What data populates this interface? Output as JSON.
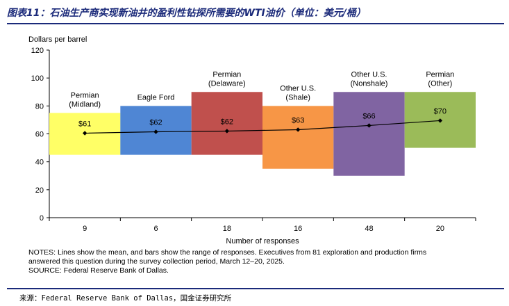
{
  "header": {
    "title": "图表11：石油生产商实现新油井的盈利性钻探所需要的WTI油价（单位：美元/桶）"
  },
  "chart_data": {
    "type": "bar",
    "subtype": "floating-range-with-mean-line",
    "ylabel": "Dollars per barrel",
    "xlabel": "Number of responses",
    "ylim": [
      0,
      120
    ],
    "yticks": [
      0,
      20,
      40,
      60,
      80,
      100,
      120
    ],
    "categories": [
      [
        "Permian",
        "(Midland)"
      ],
      [
        "Eagle Ford"
      ],
      [
        "Permian",
        "(Delaware)"
      ],
      [
        "Other U.S.",
        "(Shale)"
      ],
      [
        "Other U.S.",
        "(Nonshale)"
      ],
      [
        "Permian",
        "(Other)"
      ]
    ],
    "responses": [
      "9",
      "6",
      "18",
      "16",
      "48",
      "20"
    ],
    "range_low": [
      45,
      45,
      45,
      35,
      30,
      50
    ],
    "range_high": [
      75,
      80,
      90,
      80,
      90,
      90
    ],
    "mean": [
      60.5,
      61.5,
      62,
      63,
      66,
      69.5
    ],
    "mean_labels": [
      "$61",
      "$62",
      "$62",
      "$63",
      "$66",
      "$70"
    ],
    "colors": [
      "#ffff66",
      "#4f86d4",
      "#c0504d",
      "#f79646",
      "#8064a2",
      "#9bbb59"
    ]
  },
  "notes": {
    "line1": "NOTES: Lines show the mean, and bars show the range of responses. Executives from 81 exploration and production firms",
    "line2": "answered this question during the survey collection period, March 12–20, 2025.",
    "line3": "SOURCE: Federal Reserve Bank of Dallas."
  },
  "source": "来源：Federal Reserve Bank of Dallas，国金证券研究所"
}
